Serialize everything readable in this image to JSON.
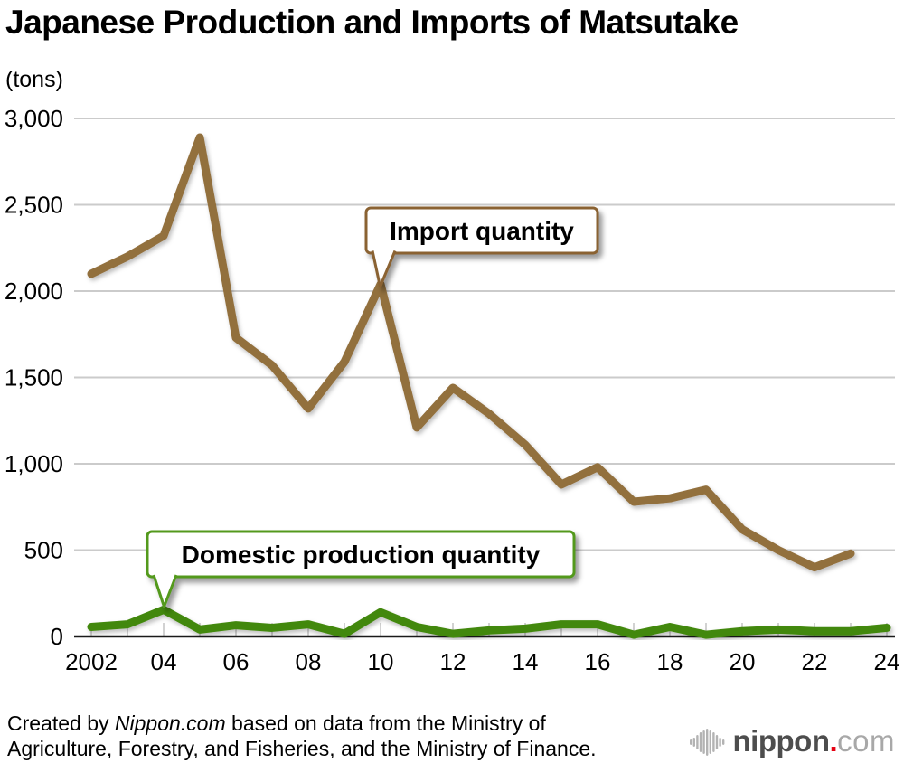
{
  "title": "Japanese Production and Imports of Matsutake",
  "unit_label": "(tons)",
  "chart_data": {
    "type": "line",
    "title": "Japanese Production and Imports of Matsutake",
    "ylabel": "(tons)",
    "ylim": [
      0,
      3000
    ],
    "grid": true,
    "y_ticks": [
      0,
      500,
      1000,
      1500,
      2000,
      2500,
      3000
    ],
    "y_tick_labels": [
      "0",
      "500",
      "1,000",
      "1,500",
      "2,000",
      "2,500",
      "3,000"
    ],
    "x_tick_years": [
      2002,
      2004,
      2006,
      2008,
      2010,
      2012,
      2014,
      2016,
      2018,
      2020,
      2022,
      2024
    ],
    "x_tick_labels": [
      "2002",
      "04",
      "06",
      "08",
      "10",
      "12",
      "14",
      "16",
      "18",
      "20",
      "22",
      "24"
    ],
    "series": [
      {
        "name": "Import quantity",
        "color": "#926f3e",
        "years": [
          2002,
          2003,
          2004,
          2005,
          2006,
          2007,
          2008,
          2009,
          2010,
          2011,
          2012,
          2013,
          2014,
          2015,
          2016,
          2017,
          2018,
          2019,
          2020,
          2021,
          2022,
          2023
        ],
        "values": [
          2100,
          2200,
          2320,
          2890,
          1730,
          1570,
          1320,
          1590,
          2040,
          1210,
          1440,
          1290,
          1110,
          880,
          980,
          780,
          800,
          850,
          620,
          500,
          400,
          480
        ]
      },
      {
        "name": "Domestic production quantity",
        "color": "#43880e",
        "years": [
          2002,
          2003,
          2004,
          2005,
          2006,
          2007,
          2008,
          2009,
          2010,
          2011,
          2012,
          2013,
          2014,
          2015,
          2016,
          2017,
          2018,
          2019,
          2020,
          2021,
          2022,
          2023,
          2024
        ],
        "values": [
          55,
          70,
          155,
          40,
          65,
          50,
          70,
          15,
          140,
          55,
          15,
          35,
          45,
          70,
          70,
          10,
          55,
          10,
          30,
          40,
          30,
          30,
          50
        ]
      }
    ],
    "annotations": [
      {
        "label": "Import quantity",
        "target_year": 2010,
        "target_value": 2040
      },
      {
        "label": "Domestic production quantity",
        "target_year": 2004,
        "target_value": 155
      }
    ],
    "legend_position": "callouts-on-chart"
  },
  "footer": {
    "credit_pre": "Created by ",
    "credit_italic": "Nippon.com",
    "credit_post": " based on data from the Ministry of",
    "credit_line2": "Agriculture, Forestry, and Fisheries, and the Ministry of Finance."
  },
  "logo": {
    "name": "nippon",
    "dot": ".",
    "tld": "com"
  }
}
